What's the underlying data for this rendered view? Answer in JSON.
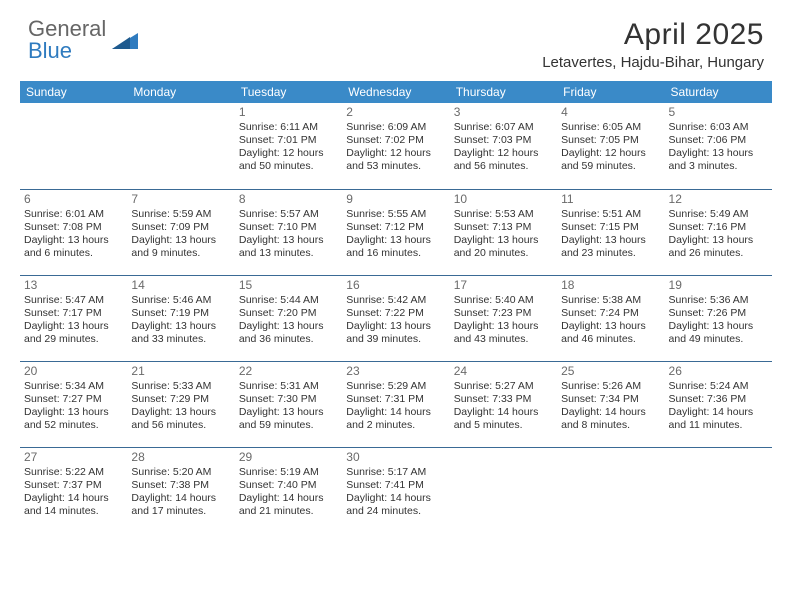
{
  "brand": {
    "part1": "General",
    "part2": "Blue"
  },
  "title": "April 2025",
  "location": "Letavertes, Hajdu-Bihar, Hungary",
  "colors": {
    "header_bg": "#3a8ac8",
    "header_text": "#ffffff",
    "border": "#3a6a95",
    "daynum": "#6a6a6a",
    "body_text": "#333333",
    "brand_gray": "#666666",
    "brand_blue": "#2f7bbf"
  },
  "day_headers": [
    "Sunday",
    "Monday",
    "Tuesday",
    "Wednesday",
    "Thursday",
    "Friday",
    "Saturday"
  ],
  "weeks": [
    [
      {
        "n": "",
        "sr": "",
        "ss": "",
        "dl": ""
      },
      {
        "n": "",
        "sr": "",
        "ss": "",
        "dl": ""
      },
      {
        "n": "1",
        "sr": "Sunrise: 6:11 AM",
        "ss": "Sunset: 7:01 PM",
        "dl": "Daylight: 12 hours and 50 minutes."
      },
      {
        "n": "2",
        "sr": "Sunrise: 6:09 AM",
        "ss": "Sunset: 7:02 PM",
        "dl": "Daylight: 12 hours and 53 minutes."
      },
      {
        "n": "3",
        "sr": "Sunrise: 6:07 AM",
        "ss": "Sunset: 7:03 PM",
        "dl": "Daylight: 12 hours and 56 minutes."
      },
      {
        "n": "4",
        "sr": "Sunrise: 6:05 AM",
        "ss": "Sunset: 7:05 PM",
        "dl": "Daylight: 12 hours and 59 minutes."
      },
      {
        "n": "5",
        "sr": "Sunrise: 6:03 AM",
        "ss": "Sunset: 7:06 PM",
        "dl": "Daylight: 13 hours and 3 minutes."
      }
    ],
    [
      {
        "n": "6",
        "sr": "Sunrise: 6:01 AM",
        "ss": "Sunset: 7:08 PM",
        "dl": "Daylight: 13 hours and 6 minutes."
      },
      {
        "n": "7",
        "sr": "Sunrise: 5:59 AM",
        "ss": "Sunset: 7:09 PM",
        "dl": "Daylight: 13 hours and 9 minutes."
      },
      {
        "n": "8",
        "sr": "Sunrise: 5:57 AM",
        "ss": "Sunset: 7:10 PM",
        "dl": "Daylight: 13 hours and 13 minutes."
      },
      {
        "n": "9",
        "sr": "Sunrise: 5:55 AM",
        "ss": "Sunset: 7:12 PM",
        "dl": "Daylight: 13 hours and 16 minutes."
      },
      {
        "n": "10",
        "sr": "Sunrise: 5:53 AM",
        "ss": "Sunset: 7:13 PM",
        "dl": "Daylight: 13 hours and 20 minutes."
      },
      {
        "n": "11",
        "sr": "Sunrise: 5:51 AM",
        "ss": "Sunset: 7:15 PM",
        "dl": "Daylight: 13 hours and 23 minutes."
      },
      {
        "n": "12",
        "sr": "Sunrise: 5:49 AM",
        "ss": "Sunset: 7:16 PM",
        "dl": "Daylight: 13 hours and 26 minutes."
      }
    ],
    [
      {
        "n": "13",
        "sr": "Sunrise: 5:47 AM",
        "ss": "Sunset: 7:17 PM",
        "dl": "Daylight: 13 hours and 29 minutes."
      },
      {
        "n": "14",
        "sr": "Sunrise: 5:46 AM",
        "ss": "Sunset: 7:19 PM",
        "dl": "Daylight: 13 hours and 33 minutes."
      },
      {
        "n": "15",
        "sr": "Sunrise: 5:44 AM",
        "ss": "Sunset: 7:20 PM",
        "dl": "Daylight: 13 hours and 36 minutes."
      },
      {
        "n": "16",
        "sr": "Sunrise: 5:42 AM",
        "ss": "Sunset: 7:22 PM",
        "dl": "Daylight: 13 hours and 39 minutes."
      },
      {
        "n": "17",
        "sr": "Sunrise: 5:40 AM",
        "ss": "Sunset: 7:23 PM",
        "dl": "Daylight: 13 hours and 43 minutes."
      },
      {
        "n": "18",
        "sr": "Sunrise: 5:38 AM",
        "ss": "Sunset: 7:24 PM",
        "dl": "Daylight: 13 hours and 46 minutes."
      },
      {
        "n": "19",
        "sr": "Sunrise: 5:36 AM",
        "ss": "Sunset: 7:26 PM",
        "dl": "Daylight: 13 hours and 49 minutes."
      }
    ],
    [
      {
        "n": "20",
        "sr": "Sunrise: 5:34 AM",
        "ss": "Sunset: 7:27 PM",
        "dl": "Daylight: 13 hours and 52 minutes."
      },
      {
        "n": "21",
        "sr": "Sunrise: 5:33 AM",
        "ss": "Sunset: 7:29 PM",
        "dl": "Daylight: 13 hours and 56 minutes."
      },
      {
        "n": "22",
        "sr": "Sunrise: 5:31 AM",
        "ss": "Sunset: 7:30 PM",
        "dl": "Daylight: 13 hours and 59 minutes."
      },
      {
        "n": "23",
        "sr": "Sunrise: 5:29 AM",
        "ss": "Sunset: 7:31 PM",
        "dl": "Daylight: 14 hours and 2 minutes."
      },
      {
        "n": "24",
        "sr": "Sunrise: 5:27 AM",
        "ss": "Sunset: 7:33 PM",
        "dl": "Daylight: 14 hours and 5 minutes."
      },
      {
        "n": "25",
        "sr": "Sunrise: 5:26 AM",
        "ss": "Sunset: 7:34 PM",
        "dl": "Daylight: 14 hours and 8 minutes."
      },
      {
        "n": "26",
        "sr": "Sunrise: 5:24 AM",
        "ss": "Sunset: 7:36 PM",
        "dl": "Daylight: 14 hours and 11 minutes."
      }
    ],
    [
      {
        "n": "27",
        "sr": "Sunrise: 5:22 AM",
        "ss": "Sunset: 7:37 PM",
        "dl": "Daylight: 14 hours and 14 minutes."
      },
      {
        "n": "28",
        "sr": "Sunrise: 5:20 AM",
        "ss": "Sunset: 7:38 PM",
        "dl": "Daylight: 14 hours and 17 minutes."
      },
      {
        "n": "29",
        "sr": "Sunrise: 5:19 AM",
        "ss": "Sunset: 7:40 PM",
        "dl": "Daylight: 14 hours and 21 minutes."
      },
      {
        "n": "30",
        "sr": "Sunrise: 5:17 AM",
        "ss": "Sunset: 7:41 PM",
        "dl": "Daylight: 14 hours and 24 minutes."
      },
      {
        "n": "",
        "sr": "",
        "ss": "",
        "dl": ""
      },
      {
        "n": "",
        "sr": "",
        "ss": "",
        "dl": ""
      },
      {
        "n": "",
        "sr": "",
        "ss": "",
        "dl": ""
      }
    ]
  ]
}
